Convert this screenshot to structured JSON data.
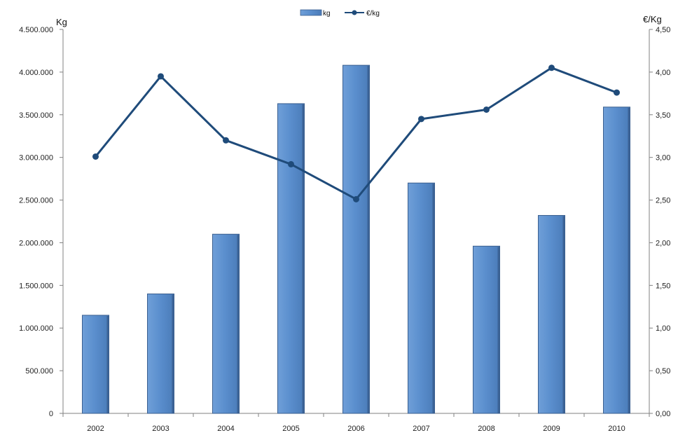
{
  "chart_data": {
    "type": "bar",
    "categories": [
      "2002",
      "2003",
      "2004",
      "2005",
      "2006",
      "2007",
      "2008",
      "2009",
      "2010"
    ],
    "series": [
      {
        "name": "kg",
        "type": "bar",
        "axis": "left",
        "values": [
          1150000,
          1400000,
          2100000,
          3630000,
          4080000,
          2700000,
          1960000,
          2320000,
          3590000
        ]
      },
      {
        "name": "€/kg",
        "type": "line",
        "axis": "right",
        "values": [
          3.01,
          3.95,
          3.2,
          2.92,
          2.51,
          3.45,
          3.56,
          4.05,
          3.76
        ]
      }
    ],
    "ylabel_left": "Kg",
    "ylabel_right": "€/Kg",
    "ylim_left": [
      0,
      4500000
    ],
    "ylim_right": [
      0,
      4.5
    ],
    "yticks_left": [
      "0",
      "500.000",
      "1.000.000",
      "1.500.000",
      "2.000.000",
      "2.500.000",
      "3.000.000",
      "3.500.000",
      "4.000.000",
      "4.500.000"
    ],
    "yticks_right": [
      "0,00",
      "0,50",
      "1,00",
      "1,50",
      "2,00",
      "2,50",
      "3,00",
      "3,50",
      "4,00",
      "4,50"
    ],
    "grid": false,
    "legend": "top-center",
    "colors": {
      "bar": "#5b8fce",
      "bar_edge": "#3a5f8f",
      "line": "#1f4b7a"
    }
  }
}
